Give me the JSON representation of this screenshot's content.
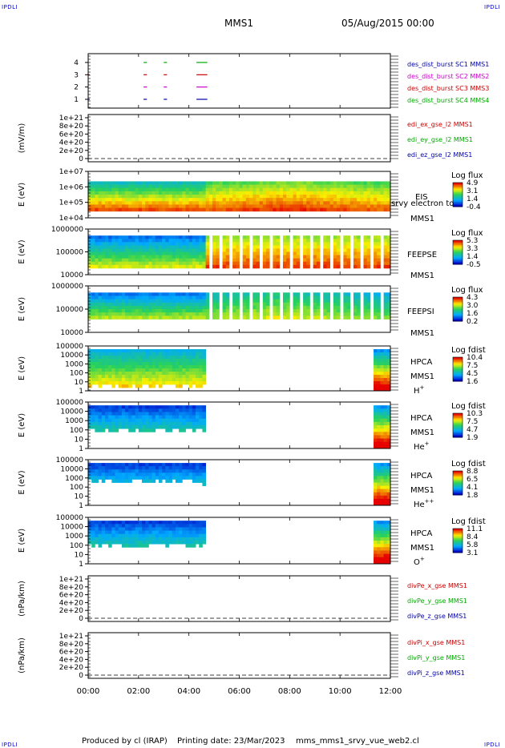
{
  "header": {
    "corner_label": "IPDLI",
    "title": "MMS1",
    "datetime": "05/Aug/2015 00:00"
  },
  "footer": {
    "produced_by": "Produced by cl (IRAP)",
    "printing_date": "Printing date: 23/Mar/2023",
    "script_name": "mms_mms1_srvy_vue_web2.cl"
  },
  "colors": {
    "sc1": "#0000aa",
    "sc2": "#cc00cc",
    "sc3": "#cc0000",
    "sc4": "#00aa00",
    "x": "#cc0000",
    "y": "#00aa00",
    "z": "#0000aa"
  },
  "time_axis": {
    "range_hours": [
      0,
      12
    ],
    "ticks": [
      "00:00",
      "02:00",
      "04:00",
      "06:00",
      "08:00",
      "10:00",
      "12:00"
    ]
  },
  "chart_data": [
    {
      "id": "burst",
      "type": "scatter",
      "y_ticks": [
        "1",
        "2",
        "3",
        "4"
      ],
      "series": [
        {
          "name": "des_dist_burst SC1 MMS1",
          "color": "#0000aa",
          "level": 1,
          "intervals": [
            [
              0.0,
              0.03
            ],
            [
              2.2,
              2.3
            ],
            [
              3.0,
              3.1
            ],
            [
              4.3,
              4.7
            ]
          ]
        },
        {
          "name": "des_dist_burst SC2 MMS2",
          "color": "#cc00cc",
          "level": 2,
          "intervals": [
            [
              2.2,
              2.3
            ],
            [
              3.0,
              3.1
            ],
            [
              4.3,
              4.7
            ]
          ]
        },
        {
          "name": "des_dist_burst SC3 MMS3",
          "color": "#cc0000",
          "level": 3,
          "intervals": [
            [
              0.0,
              0.03
            ],
            [
              2.2,
              2.3
            ],
            [
              3.0,
              3.1
            ],
            [
              4.3,
              4.7
            ]
          ]
        },
        {
          "name": "des_dist_burst SC4 MMS4",
          "color": "#00aa00",
          "level": 4,
          "intervals": [
            [
              2.2,
              2.3
            ],
            [
              3.0,
              3.1
            ],
            [
              4.3,
              4.7
            ]
          ]
        }
      ]
    },
    {
      "id": "edi",
      "type": "line",
      "ylabel": "(mV/m)",
      "y_ticks": [
        "1e+21",
        "8e+20",
        "6e+20",
        "4e+20",
        "2e+20",
        "0"
      ],
      "series": [
        {
          "name": "edi_ex_gse_l2 MMS1",
          "color": "#cc0000"
        },
        {
          "name": "edi_ey_gse_l2 MMS1",
          "color": "#00aa00"
        },
        {
          "name": "edi_ez_gse_l2 MMS1",
          "color": "#0000aa"
        }
      ]
    },
    {
      "id": "eis",
      "type": "heatmap",
      "ylabel": "E (eV)",
      "y_ticks": [
        "1e+07",
        "1e+06",
        "1e+05",
        "1e+04"
      ],
      "instrument": "EIS",
      "instrument_sub": "MMS1",
      "overlay_label": "srvy electron to",
      "colorbar_title": "Log flux",
      "colorbar_ticks": [
        "4.9",
        "3.1",
        "1.4",
        "-0.4"
      ]
    },
    {
      "id": "feepse",
      "type": "heatmap",
      "ylabel": "E (eV)",
      "y_ticks": [
        "1000000",
        "100000",
        "10000"
      ],
      "instrument": "FEEPSE",
      "instrument_sub": "MMS1",
      "colorbar_title": "Log flux",
      "colorbar_ticks": [
        "5.3",
        "3.3",
        "1.4",
        "-0.5"
      ]
    },
    {
      "id": "feepsi",
      "type": "heatmap",
      "ylabel": "E (eV)",
      "y_ticks": [
        "1000000",
        "100000",
        "10000"
      ],
      "instrument": "FEEPSI",
      "instrument_sub": "MMS1",
      "colorbar_title": "Log flux",
      "colorbar_ticks": [
        "4.3",
        "3.0",
        "1.6",
        "0.2"
      ]
    },
    {
      "id": "hpca_h",
      "type": "heatmap",
      "ylabel": "E (eV)",
      "y_ticks": [
        "100000",
        "10000",
        "1000",
        "100",
        "10",
        "1"
      ],
      "instrument": "HPCA",
      "instrument_sub": "MMS1",
      "species": "H",
      "species_sup": "+",
      "colorbar_title": "Log fdist",
      "colorbar_ticks": [
        "10.4",
        "7.5",
        "4.5",
        "1.6"
      ]
    },
    {
      "id": "hpca_he",
      "type": "heatmap",
      "ylabel": "E (eV)",
      "y_ticks": [
        "100000",
        "10000",
        "1000",
        "100",
        "10",
        "1"
      ],
      "instrument": "HPCA",
      "instrument_sub": "MMS1",
      "species": "He",
      "species_sup": "+",
      "colorbar_title": "Log fdist",
      "colorbar_ticks": [
        "10.3",
        "7.5",
        "4.7",
        "1.9"
      ]
    },
    {
      "id": "hpca_hepp",
      "type": "heatmap",
      "ylabel": "E (eV)",
      "y_ticks": [
        "100000",
        "10000",
        "1000",
        "100",
        "10",
        "1"
      ],
      "instrument": "HPCA",
      "instrument_sub": "MMS1",
      "species": "He",
      "species_sup": "++",
      "colorbar_title": "Log fdist",
      "colorbar_ticks": [
        "8.8",
        "6.5",
        "4.1",
        "1.8"
      ]
    },
    {
      "id": "hpca_o",
      "type": "heatmap",
      "ylabel": "E (eV)",
      "y_ticks": [
        "100000",
        "10000",
        "1000",
        "100",
        "10",
        "1"
      ],
      "instrument": "HPCA",
      "instrument_sub": "MMS1",
      "species": "O",
      "species_sup": "+",
      "colorbar_title": "Log fdist",
      "colorbar_ticks": [
        "11.1",
        "8.4",
        "5.8",
        "3.1"
      ]
    },
    {
      "id": "divpe",
      "type": "line",
      "ylabel": "(nPa/km)",
      "y_ticks": [
        "1e+21",
        "8e+20",
        "6e+20",
        "4e+20",
        "2e+20",
        "0"
      ],
      "series": [
        {
          "name": "divPe_x_gse MMS1",
          "color": "#cc0000"
        },
        {
          "name": "divPe_y_gse MMS1",
          "color": "#00aa00"
        },
        {
          "name": "divPe_z_gse MMS1",
          "color": "#0000aa"
        }
      ]
    },
    {
      "id": "divpi",
      "type": "line",
      "ylabel": "(nPa/km)",
      "y_ticks": [
        "1e+21",
        "8e+20",
        "6e+20",
        "4e+20",
        "2e+20",
        "0"
      ],
      "series": [
        {
          "name": "divPi_x_gse MMS1",
          "color": "#cc0000"
        },
        {
          "name": "divPi_y_gse MMS1",
          "color": "#00aa00"
        },
        {
          "name": "divPi_z_gse MMS1",
          "color": "#0000aa"
        }
      ]
    }
  ]
}
